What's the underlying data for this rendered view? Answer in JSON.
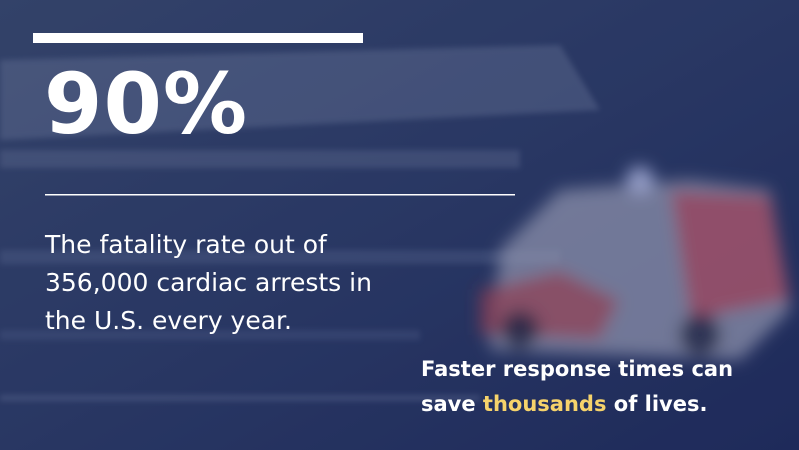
{
  "stat": {
    "value": "90%",
    "description_lines": [
      "The fatality rate out of",
      "356,000 cardiac arrests in",
      "the U.S. every year."
    ]
  },
  "tagline": {
    "line1": "Faster response times can",
    "before": "save",
    "highlight": "thousands",
    "after": "of lives."
  }
}
